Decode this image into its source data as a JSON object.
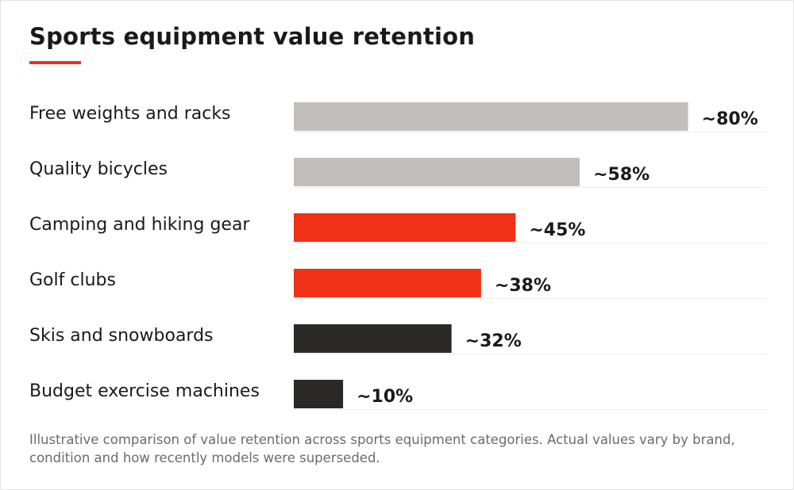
{
  "title": "Sports equipment value retention",
  "footnote": "Illustrative comparison of value retention across sports equipment categories. Actual values vary by brand, condition and how recently models were superseded.",
  "colors": {
    "accent": "#f13117",
    "grey": "#c2bebb",
    "dark": "#2b2927",
    "gridline": "#ececec"
  },
  "chart_data": {
    "type": "bar",
    "orientation": "horizontal",
    "title": "Sports equipment value retention",
    "categories": [
      "Free weights and racks",
      "Quality bicycles",
      "Camping and hiking gear",
      "Golf clubs",
      "Skis and snowboards",
      "Budget exercise machines"
    ],
    "values": [
      80,
      58,
      45,
      38,
      32,
      10
    ],
    "value_labels": [
      "~80%",
      "~58%",
      "~45%",
      "~38%",
      "~32%",
      "~10%"
    ],
    "bar_colors": [
      "#c2bebb",
      "#c2bebb",
      "#f13117",
      "#f13117",
      "#2b2927",
      "#2b2927"
    ],
    "xlim": [
      0,
      96
    ],
    "grid": true,
    "legend": "none"
  }
}
